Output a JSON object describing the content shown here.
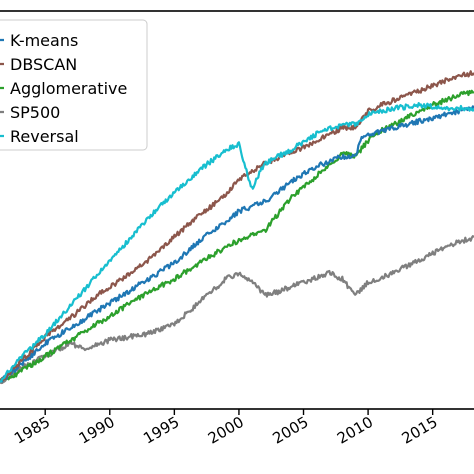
{
  "chart_data": {
    "type": "line",
    "title": "",
    "xlabel": "",
    "ylabel": "",
    "xlim": [
      1981.5,
      2018.2
    ],
    "ylim": [
      0,
      1
    ],
    "grid": false,
    "legend_position": "top-left",
    "x_ticks": [
      1985,
      1990,
      1995,
      2000,
      2005,
      2010,
      2015
    ],
    "x_tick_labels": [
      "1985",
      "1990",
      "1995",
      "2000",
      "2005",
      "2010",
      "2015"
    ],
    "series": [
      {
        "name": "K-means",
        "color": "#1f77b4",
        "x": [
          1981.5,
          1983,
          1985,
          1987,
          1989,
          1991,
          1993,
          1995,
          1997,
          1999,
          2000,
          2002,
          2004,
          2006,
          2008,
          2009,
          2009.5,
          2011,
          2013,
          2015,
          2017,
          2018.2
        ],
        "y": [
          0.0,
          0.05,
          0.12,
          0.17,
          0.22,
          0.27,
          0.32,
          0.37,
          0.44,
          0.5,
          0.53,
          0.56,
          0.62,
          0.67,
          0.7,
          0.7,
          0.76,
          0.78,
          0.8,
          0.82,
          0.84,
          0.85
        ]
      },
      {
        "name": "DBSCAN",
        "color": "#8c564b",
        "x": [
          1981.5,
          1983,
          1985,
          1987,
          1989,
          1991,
          1993,
          1995,
          1997,
          1999,
          2000,
          2002,
          2004,
          2006,
          2008,
          2009,
          2010,
          2011,
          2013,
          2015,
          2017,
          2018.2
        ],
        "y": [
          0.0,
          0.06,
          0.14,
          0.2,
          0.27,
          0.32,
          0.38,
          0.45,
          0.52,
          0.58,
          0.63,
          0.68,
          0.71,
          0.75,
          0.79,
          0.79,
          0.84,
          0.86,
          0.89,
          0.92,
          0.95,
          0.96
        ]
      },
      {
        "name": "Agglomerative",
        "color": "#2ca02c",
        "x": [
          1981.5,
          1983,
          1985,
          1987,
          1989,
          1991,
          1993,
          1995,
          1997,
          1999,
          2000,
          2002,
          2004,
          2006,
          2008,
          2009,
          2010,
          2011,
          2013,
          2015,
          2017,
          2018.2
        ],
        "y": [
          0.0,
          0.03,
          0.08,
          0.13,
          0.18,
          0.23,
          0.28,
          0.32,
          0.37,
          0.42,
          0.44,
          0.47,
          0.57,
          0.64,
          0.71,
          0.7,
          0.75,
          0.78,
          0.82,
          0.86,
          0.89,
          0.9
        ]
      },
      {
        "name": "SP500",
        "color": "#7f7f7f",
        "x": [
          1981.5,
          1983,
          1985,
          1987,
          1988,
          1990,
          1993,
          1995,
          1997,
          1999,
          2000,
          2001,
          2002,
          2003,
          2005,
          2007,
          2008,
          2009,
          2010,
          2012,
          2014,
          2016,
          2018.2
        ],
        "y": [
          0.0,
          0.04,
          0.08,
          0.12,
          0.1,
          0.13,
          0.15,
          0.18,
          0.25,
          0.32,
          0.34,
          0.31,
          0.27,
          0.28,
          0.31,
          0.34,
          0.32,
          0.27,
          0.31,
          0.34,
          0.38,
          0.42,
          0.45
        ]
      },
      {
        "name": "Reversal",
        "color": "#17becf",
        "x": [
          1981.5,
          1983,
          1985,
          1987,
          1989,
          1991,
          1993,
          1995,
          1997,
          1999,
          2000,
          2001,
          2002,
          2004,
          2006,
          2008,
          2009,
          2010,
          2012,
          2014,
          2016,
          2018.2
        ],
        "y": [
          0.0,
          0.07,
          0.15,
          0.24,
          0.33,
          0.42,
          0.51,
          0.59,
          0.66,
          0.72,
          0.74,
          0.6,
          0.68,
          0.72,
          0.77,
          0.8,
          0.8,
          0.83,
          0.85,
          0.86,
          0.85,
          0.85
        ]
      }
    ]
  }
}
